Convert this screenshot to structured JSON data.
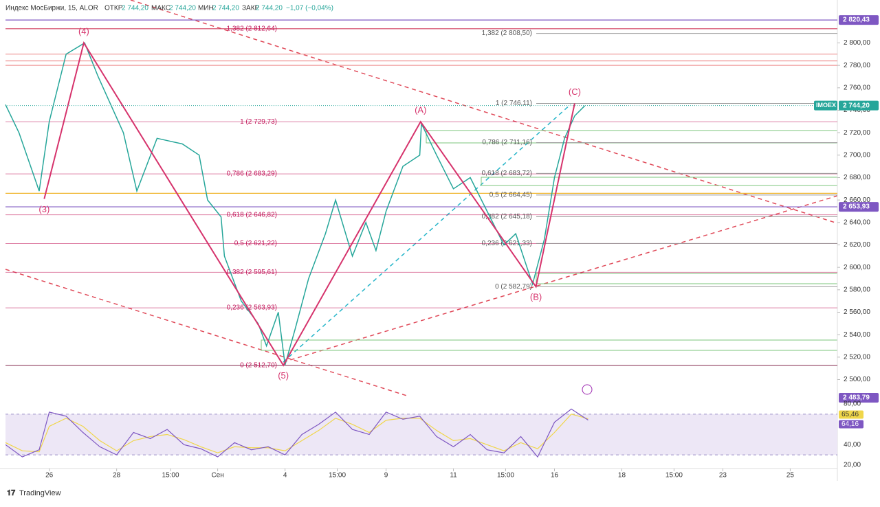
{
  "header": {
    "title": "Индекс МосБиржи, 15, ALOR",
    "open_label": "ОТКР",
    "open": "2 744,20",
    "high_label": "МАКС",
    "high": "2 744,20",
    "low_label": "МИН",
    "low": "2 744,20",
    "close_label": "ЗАКР",
    "close": "2 744,20",
    "change": "−1,07 (−0,04%)"
  },
  "chart_data": {
    "type": "line",
    "xlim": [
      0,
      494
    ],
    "ylim": [
      2485,
      2826
    ],
    "xticks": [
      {
        "value": 26,
        "label": "26"
      },
      {
        "value": 66,
        "label": "28"
      },
      {
        "value": 98,
        "label": "15:00"
      },
      {
        "value": 126,
        "label": "Сен"
      },
      {
        "value": 166,
        "label": "4"
      },
      {
        "value": 197,
        "label": "15:00"
      },
      {
        "value": 226,
        "label": "9"
      },
      {
        "value": 266,
        "label": "11"
      },
      {
        "value": 297,
        "label": "15:00"
      },
      {
        "value": 326,
        "label": "16"
      },
      {
        "value": 366,
        "label": "18"
      },
      {
        "value": 397,
        "label": "15:00"
      },
      {
        "value": 426,
        "label": "23"
      },
      {
        "value": 466,
        "label": "25"
      }
    ],
    "yticks": [
      {
        "value": 2500,
        "label": "2 500,00"
      },
      {
        "value": 2520,
        "label": "2 520,00"
      },
      {
        "value": 2540,
        "label": "2 540,00"
      },
      {
        "value": 2560,
        "label": "2 560,00"
      },
      {
        "value": 2580,
        "label": "2 580,00"
      },
      {
        "value": 2600,
        "label": "2 600,00"
      },
      {
        "value": 2620,
        "label": "2 620,00"
      },
      {
        "value": 2640,
        "label": "2 640,00"
      },
      {
        "value": 2660,
        "label": "2 660,00"
      },
      {
        "value": 2680,
        "label": "2 680,00"
      },
      {
        "value": 2700,
        "label": "2 700,00"
      },
      {
        "value": 2720,
        "label": "2 720,00"
      },
      {
        "value": 2740,
        "label": "2 740,00"
      },
      {
        "value": 2760,
        "label": "2 760,00"
      },
      {
        "value": 2780,
        "label": "2 780,00"
      },
      {
        "value": 2800,
        "label": "2 800,00"
      }
    ],
    "series": [
      {
        "name": "IMOEX",
        "color": "#26a69a",
        "x": [
          0,
          8,
          20,
          26,
          36,
          47,
          55,
          70,
          78,
          90,
          105,
          115,
          120,
          128,
          130,
          140,
          150,
          155,
          162,
          166,
          172,
          180,
          190,
          196,
          206,
          214,
          220,
          226,
          236,
          246,
          247,
          256,
          266,
          276,
          286,
          296,
          303,
          313,
          320,
          326,
          332,
          338,
          344
        ],
        "values": [
          2745,
          2720,
          2668,
          2730,
          2790,
          2800,
          2770,
          2720,
          2668,
          2715,
          2710,
          2700,
          2660,
          2645,
          2610,
          2570,
          2550,
          2530,
          2560,
          2513,
          2545,
          2590,
          2630,
          2660,
          2610,
          2640,
          2615,
          2650,
          2690,
          2700,
          2728,
          2700,
          2670,
          2680,
          2650,
          2620,
          2630,
          2585,
          2625,
          2680,
          2715,
          2735,
          2744
        ]
      }
    ],
    "levels": [
      {
        "value": 2820.43,
        "color": "#7e57c2"
      },
      {
        "value": 2812.64,
        "color": "#e57373"
      },
      {
        "value": 2790,
        "color": "#ef9a9a"
      },
      {
        "value": 2784,
        "color": "#ef9a9a"
      },
      {
        "value": 2780,
        "color": "#ef9a9a"
      },
      {
        "value": 2666,
        "color": "#f0b429"
      },
      {
        "value": 2653.93,
        "color": "#7e57c2"
      },
      {
        "value": 2512.7,
        "color": "#888888"
      }
    ],
    "fib_left": [
      {
        "value": 2812.64,
        "label": "1,382 (2 812,64)"
      },
      {
        "value": 2729.73,
        "label": "1 (2 729,73)"
      },
      {
        "value": 2683.29,
        "label": "0,786 (2 683,29)"
      },
      {
        "value": 2646.82,
        "label": "0,618 (2 646,82)"
      },
      {
        "value": 2621.22,
        "label": "0,5 (2 621,22)"
      },
      {
        "value": 2595.61,
        "label": "0,382 (2 595,61)"
      },
      {
        "value": 2563.93,
        "label": "0,236 (2 563,93)"
      },
      {
        "value": 2512.7,
        "label": "0 (2 512,70)"
      }
    ],
    "fib_right": [
      {
        "value": 2808.5,
        "label": "1,382 (2 808,50)"
      },
      {
        "value": 2746.11,
        "label": "1 (2 746,11)"
      },
      {
        "value": 2711.16,
        "label": "0,786 (2 711,16)"
      },
      {
        "value": 2683.72,
        "label": "0,618 (2 683,72)"
      },
      {
        "value": 2664.45,
        "label": "0,5 (2 664,45)"
      },
      {
        "value": 2645.18,
        "label": "0,382 (2 645,18)"
      },
      {
        "value": 2621.33,
        "label": "0,236 (2 621,33)"
      },
      {
        "value": 2582.79,
        "label": "0 (2 582,79)"
      }
    ],
    "waves": [
      {
        "label": "(3)",
        "x": 23,
        "price": 2661,
        "pos": "below"
      },
      {
        "label": "(4)",
        "x": 46.5,
        "price": 2800,
        "pos": "above"
      },
      {
        "label": "(5)",
        "x": 165,
        "price": 2512.7,
        "pos": "below"
      },
      {
        "label": "(A)",
        "x": 246.5,
        "price": 2729.73,
        "pos": "above"
      },
      {
        "label": "(B)",
        "x": 315,
        "price": 2582.79,
        "pos": "below"
      },
      {
        "label": "(C)",
        "x": 338,
        "price": 2746.11,
        "pos": "above"
      }
    ],
    "badges": [
      {
        "label": "2 820,43",
        "value": 2820.43,
        "color": "#7e57c2"
      },
      {
        "label": "2 744,20",
        "value": 2744.2,
        "color": "#26a69a",
        "name": "IMOEX"
      },
      {
        "label": "2 653,93",
        "value": 2653.93,
        "color": "#7e57c2"
      },
      {
        "label": "2 483,79",
        "value": 2483.79,
        "color": "#7e57c2"
      }
    ],
    "rsi": {
      "ylim": [
        16.6,
        85.4
      ],
      "yticks": [
        {
          "value": 80,
          "label": "80,00"
        },
        {
          "value": 40,
          "label": "40,00"
        },
        {
          "value": 20,
          "label": "20,00"
        }
      ],
      "x": [
        0,
        10,
        20,
        26,
        36,
        46,
        56,
        66,
        76,
        86,
        96,
        106,
        116,
        126,
        136,
        146,
        156,
        166,
        176,
        186,
        196,
        206,
        216,
        226,
        236,
        246,
        256,
        266,
        276,
        286,
        296,
        306,
        316,
        326,
        336,
        346
      ],
      "values": [
        40,
        28,
        35,
        72,
        68,
        52,
        38,
        30,
        52,
        46,
        55,
        40,
        36,
        28,
        42,
        35,
        38,
        30,
        50,
        60,
        72,
        55,
        50,
        72,
        65,
        68,
        48,
        38,
        50,
        35,
        32,
        48,
        28,
        62,
        75,
        64.16
      ],
      "signal": [
        42,
        34,
        33,
        58,
        66,
        58,
        44,
        34,
        44,
        48,
        50,
        45,
        38,
        32,
        38,
        37,
        37,
        34,
        44,
        54,
        66,
        60,
        52,
        64,
        66,
        66,
        54,
        44,
        46,
        40,
        34,
        42,
        36,
        52,
        70,
        65.46
      ],
      "labels": [
        {
          "label": "65,46",
          "value": 65.46,
          "color": "#f0d64a"
        },
        {
          "label": "64,16",
          "value": 64.16,
          "color": "#7e57c2"
        }
      ]
    },
    "footer": "TradingView"
  }
}
